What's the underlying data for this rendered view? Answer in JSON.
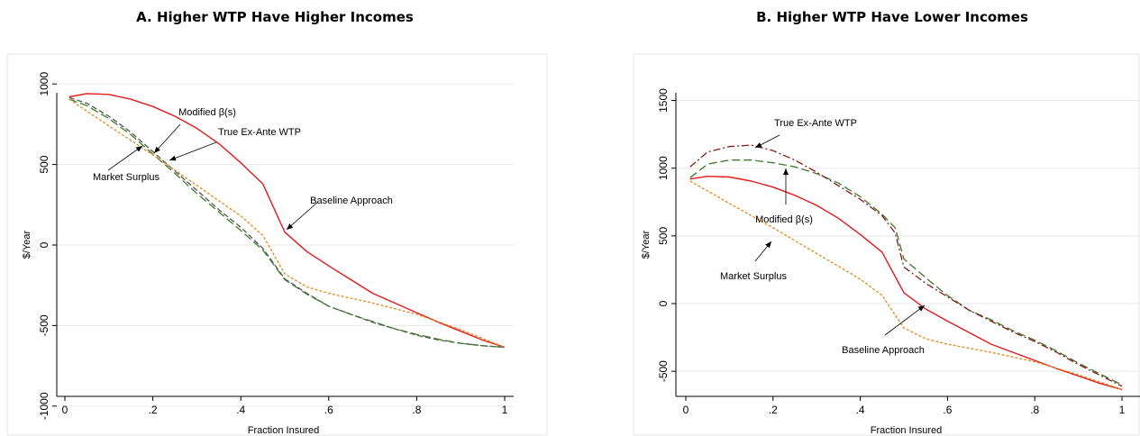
{
  "panels": [
    {
      "title": "A. Higher WTP Have Higher Incomes",
      "xlabel": "Fraction Insured",
      "ylabel": "$/Year",
      "xticks": [
        {
          "v": 0,
          "label": "0"
        },
        {
          "v": 0.2,
          "label": ".2"
        },
        {
          "v": 0.4,
          "label": ".4"
        },
        {
          "v": 0.6,
          "label": ".6"
        },
        {
          "v": 0.8,
          "label": ".8"
        },
        {
          "v": 1,
          "label": "1"
        }
      ],
      "yticks": [
        {
          "v": -1000,
          "label": "-1000"
        },
        {
          "v": -500,
          "label": "-500"
        },
        {
          "v": 0,
          "label": "0"
        },
        {
          "v": 500,
          "label": "500"
        },
        {
          "v": 1000,
          "label": "1000"
        }
      ]
    },
    {
      "title": "B. Higher WTP Have Lower Incomes",
      "xlabel": "Fraction Insured",
      "ylabel": "$/Year",
      "xticks": [
        {
          "v": 0,
          "label": "0"
        },
        {
          "v": 0.2,
          "label": ".2"
        },
        {
          "v": 0.4,
          "label": ".4"
        },
        {
          "v": 0.6,
          "label": ".6"
        },
        {
          "v": 0.8,
          "label": ".8"
        },
        {
          "v": 1,
          "label": "1"
        }
      ],
      "yticks": [
        {
          "v": -500,
          "label": "-500"
        },
        {
          "v": 0,
          "label": "0"
        },
        {
          "v": 500,
          "label": "500"
        },
        {
          "v": 1000,
          "label": "1000"
        },
        {
          "v": 1500,
          "label": "1500"
        }
      ]
    }
  ],
  "chart_data": [
    {
      "type": "line",
      "title": "A. Higher WTP Have Higher Incomes",
      "xlabel": "Fraction Insured",
      "ylabel": "$/Year",
      "xlim": [
        0,
        1
      ],
      "ylim": [
        -1000,
        1000
      ],
      "grid": true,
      "series": [
        {
          "name": "Baseline Approach",
          "color": "#e31a1c",
          "style": "solid",
          "x": [
            0.01,
            0.05,
            0.1,
            0.15,
            0.2,
            0.25,
            0.3,
            0.35,
            0.4,
            0.45,
            0.5,
            0.55,
            0.6,
            0.65,
            0.7,
            0.75,
            0.8,
            0.85,
            0.9,
            0.95,
            1.0
          ],
          "y": [
            920,
            940,
            935,
            905,
            860,
            800,
            725,
            630,
            510,
            380,
            80,
            -40,
            -130,
            -215,
            -300,
            -360,
            -420,
            -480,
            -535,
            -590,
            -635
          ]
        },
        {
          "name": "Modified β(s)",
          "color": "#555555",
          "style": "dashed",
          "x": [
            0.01,
            0.05,
            0.1,
            0.15,
            0.2,
            0.25,
            0.3,
            0.35,
            0.4,
            0.45,
            0.5,
            0.55,
            0.6,
            0.65,
            0.7,
            0.75,
            0.8,
            0.85,
            0.9,
            0.95,
            1.0
          ],
          "y": [
            915,
            880,
            800,
            700,
            580,
            460,
            340,
            220,
            110,
            -20,
            -210,
            -300,
            -380,
            -430,
            -480,
            -520,
            -560,
            -590,
            -610,
            -625,
            -635
          ]
        },
        {
          "name": "True Ex-Ante WTP",
          "color": "#3c7a2a",
          "style": "longdash",
          "x": [
            0.01,
            0.05,
            0.1,
            0.15,
            0.2,
            0.25,
            0.3,
            0.35,
            0.4,
            0.45,
            0.5,
            0.55,
            0.6,
            0.65,
            0.7,
            0.75,
            0.8,
            0.85,
            0.9,
            0.95,
            1.0
          ],
          "y": [
            905,
            865,
            785,
            685,
            565,
            445,
            320,
            205,
            90,
            -30,
            -215,
            -305,
            -380,
            -430,
            -475,
            -520,
            -555,
            -585,
            -610,
            -625,
            -635
          ]
        },
        {
          "name": "Market Surplus",
          "color": "#e08a1e",
          "style": "dotted",
          "x": [
            0.01,
            0.1,
            0.2,
            0.3,
            0.4,
            0.45,
            0.5,
            0.55,
            0.6,
            0.7,
            0.8,
            0.9,
            1.0
          ],
          "y": [
            905,
            740,
            560,
            370,
            180,
            60,
            -180,
            -260,
            -300,
            -360,
            -430,
            -525,
            -635
          ]
        }
      ],
      "annotations": [
        {
          "text": "Modified β(s)"
        },
        {
          "text": "True Ex-Ante WTP"
        },
        {
          "text": "Market Surplus"
        },
        {
          "text": "Baseline Approach"
        }
      ]
    },
    {
      "type": "line",
      "title": "B. Higher WTP Have Lower Incomes",
      "xlabel": "Fraction Insured",
      "ylabel": "$/Year",
      "xlim": [
        0,
        1
      ],
      "ylim": [
        -620,
        1620
      ],
      "grid": true,
      "series": [
        {
          "name": "Baseline Approach",
          "color": "#e31a1c",
          "style": "solid",
          "x": [
            0.01,
            0.05,
            0.1,
            0.15,
            0.2,
            0.25,
            0.3,
            0.35,
            0.4,
            0.45,
            0.5,
            0.55,
            0.6,
            0.65,
            0.7,
            0.75,
            0.8,
            0.85,
            0.9,
            0.95,
            1.0
          ],
          "y": [
            920,
            940,
            935,
            905,
            860,
            800,
            725,
            630,
            510,
            380,
            80,
            -40,
            -130,
            -215,
            -300,
            -360,
            -420,
            -480,
            -535,
            -590,
            -635
          ]
        },
        {
          "name": "Modified β(s)",
          "color": "#3c7a2a",
          "style": "longdash",
          "x": [
            0.01,
            0.05,
            0.1,
            0.15,
            0.2,
            0.25,
            0.3,
            0.35,
            0.4,
            0.45,
            0.48,
            0.5,
            0.55,
            0.6,
            0.65,
            0.7,
            0.75,
            0.8,
            0.85,
            0.9,
            0.95,
            1.0
          ],
          "y": [
            930,
            1030,
            1060,
            1060,
            1040,
            1010,
            960,
            890,
            790,
            660,
            560,
            330,
            190,
            60,
            -50,
            -120,
            -200,
            -270,
            -350,
            -440,
            -520,
            -600
          ]
        },
        {
          "name": "True Ex-Ante WTP",
          "color": "#8b1a1a",
          "style": "dashdot",
          "x": [
            0.01,
            0.05,
            0.1,
            0.15,
            0.2,
            0.25,
            0.3,
            0.35,
            0.4,
            0.45,
            0.48,
            0.5,
            0.55,
            0.6,
            0.65,
            0.7,
            0.75,
            0.8,
            0.85,
            0.9,
            0.95,
            1.0
          ],
          "y": [
            1010,
            1120,
            1160,
            1170,
            1130,
            1060,
            970,
            870,
            770,
            650,
            520,
            270,
            150,
            50,
            -50,
            -130,
            -210,
            -280,
            -360,
            -450,
            -530,
            -610
          ]
        },
        {
          "name": "Market Surplus",
          "color": "#e08a1e",
          "style": "dotted",
          "x": [
            0.01,
            0.1,
            0.2,
            0.3,
            0.4,
            0.45,
            0.5,
            0.55,
            0.6,
            0.7,
            0.8,
            0.9,
            1.0
          ],
          "y": [
            905,
            740,
            560,
            370,
            180,
            60,
            -180,
            -260,
            -300,
            -360,
            -430,
            -525,
            -635
          ]
        }
      ],
      "annotations": [
        {
          "text": "True Ex-Ante WTP"
        },
        {
          "text": "Modified β(s)"
        },
        {
          "text": "Market Surplus"
        },
        {
          "text": "Baseline Approach"
        }
      ]
    }
  ]
}
